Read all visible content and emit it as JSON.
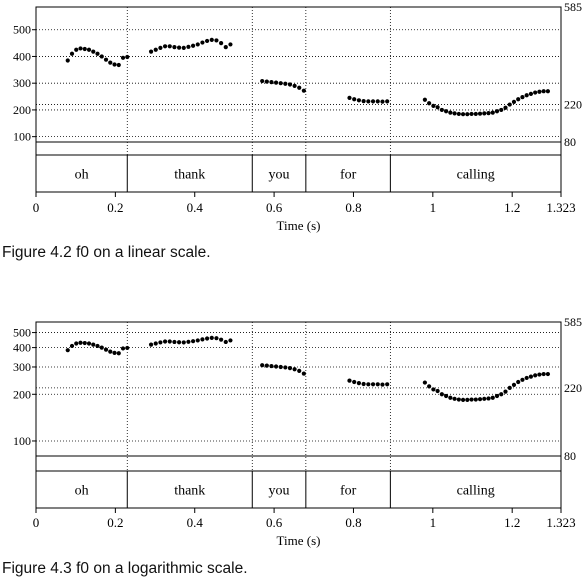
{
  "figures": [
    {
      "caption": "Figure 4.2  f0 on a linear scale.",
      "chart_data": {
        "type": "scatter",
        "scale": "linear",
        "xlabel": "Time (s)",
        "xlim": [
          0,
          1.323
        ],
        "x_ticks": [
          "0",
          "0.2",
          "0.4",
          "0.6",
          "0.8",
          "1",
          "1.2",
          "1.323"
        ],
        "y_ticks_left": [
          "100",
          "200",
          "300",
          "400",
          "500"
        ],
        "y_ticks_right": [
          "80",
          "220",
          "585"
        ],
        "ylim": [
          80,
          585
        ],
        "words": [
          {
            "text": "oh",
            "start": 0.0,
            "end": 0.23
          },
          {
            "text": "thank",
            "start": 0.23,
            "end": 0.545
          },
          {
            "text": "you",
            "start": 0.545,
            "end": 0.68
          },
          {
            "text": "for",
            "start": 0.68,
            "end": 0.893
          },
          {
            "text": "calling",
            "start": 0.893,
            "end": 1.323
          }
        ],
        "segments": [
          {
            "x0": 0.08,
            "x1": 0.23,
            "y": [
              385,
              410,
              425,
              430,
              428,
              425,
              418,
              410,
              400,
              388,
              377,
              370,
              368,
              395,
              398
            ]
          },
          {
            "x0": 0.29,
            "x1": 0.49,
            "y": [
              418,
              425,
              432,
              438,
              438,
              435,
              433,
              432,
              436,
              440,
              445,
              452,
              458,
              462,
              460,
              450,
              435,
              445
            ]
          },
          {
            "x0": 0.57,
            "x1": 0.675,
            "y": [
              308,
              306,
              304,
              302,
              300,
              298,
              295,
              290,
              283,
              272
            ]
          },
          {
            "x0": 0.79,
            "x1": 0.885,
            "y": [
              245,
              240,
              236,
              233,
              232,
              232,
              232,
              231,
              232
            ]
          },
          {
            "x0": 0.98,
            "x1": 1.29,
            "y": [
              238,
              225,
              215,
              210,
              200,
              195,
              190,
              187,
              185,
              184,
              184,
              185,
              185,
              186,
              187,
              188,
              190,
              195,
              200,
              208,
              220,
              230,
              240,
              248,
              255,
              260,
              265,
              268,
              270,
              270
            ]
          }
        ]
      }
    },
    {
      "caption": "Figure 4.3  f0 on a logarithmic scale.",
      "chart_data": {
        "type": "scatter",
        "scale": "log",
        "xlabel": "Time (s)",
        "xlim": [
          0,
          1.323
        ],
        "x_ticks": [
          "0",
          "0.2",
          "0.4",
          "0.6",
          "0.8",
          "1",
          "1.2",
          "1.323"
        ],
        "y_ticks_left": [
          "100",
          "200",
          "300",
          "400",
          "500"
        ],
        "y_ticks_right": [
          "80",
          "220",
          "585"
        ],
        "ylim": [
          80,
          585
        ],
        "words": [
          {
            "text": "oh",
            "start": 0.0,
            "end": 0.23
          },
          {
            "text": "thank",
            "start": 0.23,
            "end": 0.545
          },
          {
            "text": "you",
            "start": 0.545,
            "end": 0.68
          },
          {
            "text": "for",
            "start": 0.68,
            "end": 0.893
          },
          {
            "text": "calling",
            "start": 0.893,
            "end": 1.323
          }
        ],
        "segments": [
          {
            "x0": 0.08,
            "x1": 0.23,
            "y": [
              385,
              410,
              425,
              430,
              428,
              425,
              418,
              410,
              400,
              388,
              377,
              370,
              368,
              395,
              398
            ]
          },
          {
            "x0": 0.29,
            "x1": 0.49,
            "y": [
              418,
              425,
              432,
              438,
              438,
              435,
              433,
              432,
              436,
              440,
              445,
              452,
              458,
              462,
              460,
              450,
              435,
              445
            ]
          },
          {
            "x0": 0.57,
            "x1": 0.675,
            "y": [
              308,
              306,
              304,
              302,
              300,
              298,
              295,
              290,
              283,
              272
            ]
          },
          {
            "x0": 0.79,
            "x1": 0.885,
            "y": [
              245,
              240,
              236,
              233,
              232,
              232,
              232,
              231,
              232
            ]
          },
          {
            "x0": 0.98,
            "x1": 1.29,
            "y": [
              238,
              225,
              215,
              210,
              200,
              195,
              190,
              187,
              185,
              184,
              184,
              185,
              185,
              186,
              187,
              188,
              190,
              195,
              200,
              208,
              220,
              230,
              240,
              248,
              255,
              260,
              265,
              268,
              270,
              270
            ]
          }
        ]
      }
    }
  ]
}
